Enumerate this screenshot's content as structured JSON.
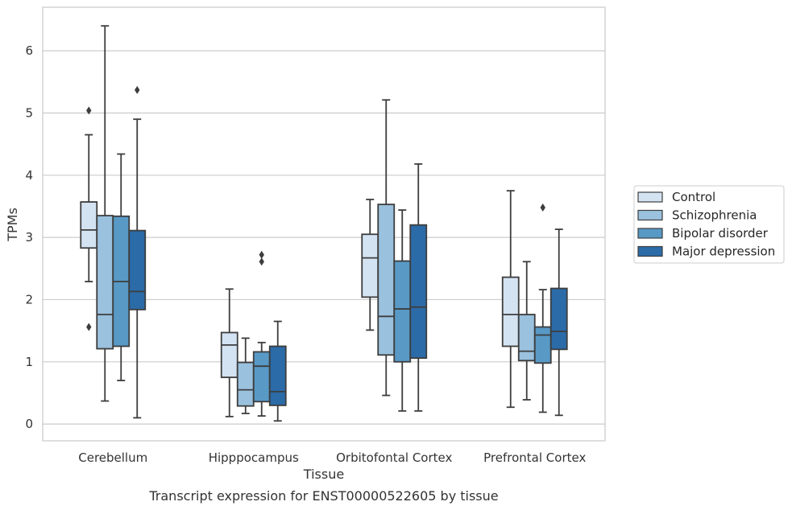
{
  "caption": "Transcript expression for ENST00000522605 by tissue",
  "chart_data": {
    "type": "box",
    "title": "",
    "xlabel": "Tissue",
    "ylabel": "TPMs",
    "ylim": [
      -0.27,
      6.7
    ],
    "yticks": [
      0,
      1,
      2,
      3,
      4,
      5,
      6
    ],
    "grid": "horizontal",
    "legend_position": "right",
    "categories": [
      "Cerebellum",
      "Hipppocampus",
      "Orbitofontal Cortex",
      "Prefrontal Cortex"
    ],
    "series": [
      {
        "name": "Control",
        "color": "#d4e3f2",
        "boxes": [
          {
            "whislo": 2.29,
            "q1": 2.83,
            "med": 3.12,
            "q3": 3.57,
            "whishi": 4.65,
            "fliers": [
              5.04,
              1.56
            ]
          },
          {
            "whislo": 0.12,
            "q1": 0.75,
            "med": 1.27,
            "q3": 1.47,
            "whishi": 2.17,
            "fliers": []
          },
          {
            "whislo": 1.51,
            "q1": 2.04,
            "med": 2.67,
            "q3": 3.05,
            "whishi": 3.61,
            "fliers": []
          },
          {
            "whislo": 0.27,
            "q1": 1.25,
            "med": 1.76,
            "q3": 2.36,
            "whishi": 3.75,
            "fliers": []
          }
        ]
      },
      {
        "name": "Schizophrenia",
        "color": "#9ac1de",
        "boxes": [
          {
            "whislo": 0.37,
            "q1": 1.21,
            "med": 1.76,
            "q3": 3.35,
            "whishi": 6.4,
            "fliers": []
          },
          {
            "whislo": 0.17,
            "q1": 0.29,
            "med": 0.55,
            "q3": 0.99,
            "whishi": 1.38,
            "fliers": []
          },
          {
            "whislo": 0.46,
            "q1": 1.11,
            "med": 1.73,
            "q3": 3.53,
            "whishi": 5.21,
            "fliers": []
          },
          {
            "whislo": 0.39,
            "q1": 1.02,
            "med": 1.17,
            "q3": 1.76,
            "whishi": 2.61,
            "fliers": []
          }
        ]
      },
      {
        "name": "Bipolar disorder",
        "color": "#5899c6",
        "boxes": [
          {
            "whislo": 0.7,
            "q1": 1.25,
            "med": 2.29,
            "q3": 3.34,
            "whishi": 4.34,
            "fliers": []
          },
          {
            "whislo": 0.13,
            "q1": 0.36,
            "med": 0.93,
            "q3": 1.16,
            "whishi": 1.31,
            "fliers": [
              2.72,
              2.61
            ]
          },
          {
            "whislo": 0.21,
            "q1": 1.0,
            "med": 1.85,
            "q3": 2.62,
            "whishi": 3.44,
            "fliers": []
          },
          {
            "whislo": 0.19,
            "q1": 0.98,
            "med": 1.43,
            "q3": 1.56,
            "whishi": 2.16,
            "fliers": [
              3.48
            ]
          }
        ]
      },
      {
        "name": "Major depression",
        "color": "#2b6ba8",
        "boxes": [
          {
            "whislo": 0.1,
            "q1": 1.84,
            "med": 2.13,
            "q3": 3.11,
            "whishi": 4.9,
            "fliers": [
              5.37
            ]
          },
          {
            "whislo": 0.05,
            "q1": 0.3,
            "med": 0.52,
            "q3": 1.25,
            "whishi": 1.65,
            "fliers": []
          },
          {
            "whislo": 0.21,
            "q1": 1.06,
            "med": 1.88,
            "q3": 3.2,
            "whishi": 4.18,
            "fliers": []
          },
          {
            "whislo": 0.14,
            "q1": 1.2,
            "med": 1.49,
            "q3": 2.18,
            "whishi": 3.13,
            "fliers": []
          }
        ]
      }
    ]
  }
}
